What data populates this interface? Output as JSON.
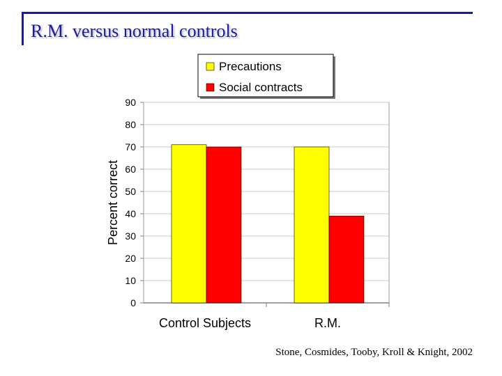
{
  "slide": {
    "title": "R.M. versus normal controls",
    "citation": "Stone, Cosmides, Tooby, Kroll & Knight, 2002"
  },
  "colors": {
    "title": "#1a1aa0",
    "precautions": "#ffff00",
    "social_contracts": "#ff0000"
  },
  "chart_data": {
    "type": "bar",
    "categories": [
      "Control Subjects",
      "R.M."
    ],
    "series": [
      {
        "name": "Precautions",
        "values": [
          71,
          70
        ],
        "color": "#ffff00"
      },
      {
        "name": "Social contracts",
        "values": [
          70,
          39
        ],
        "color": "#ff0000"
      }
    ],
    "ylabel": "Percent correct",
    "xlabel": "",
    "ylim": [
      0,
      90
    ],
    "yticks": [
      0,
      10,
      20,
      30,
      40,
      50,
      60,
      70,
      80,
      90
    ],
    "grid": true,
    "legend": "top"
  }
}
